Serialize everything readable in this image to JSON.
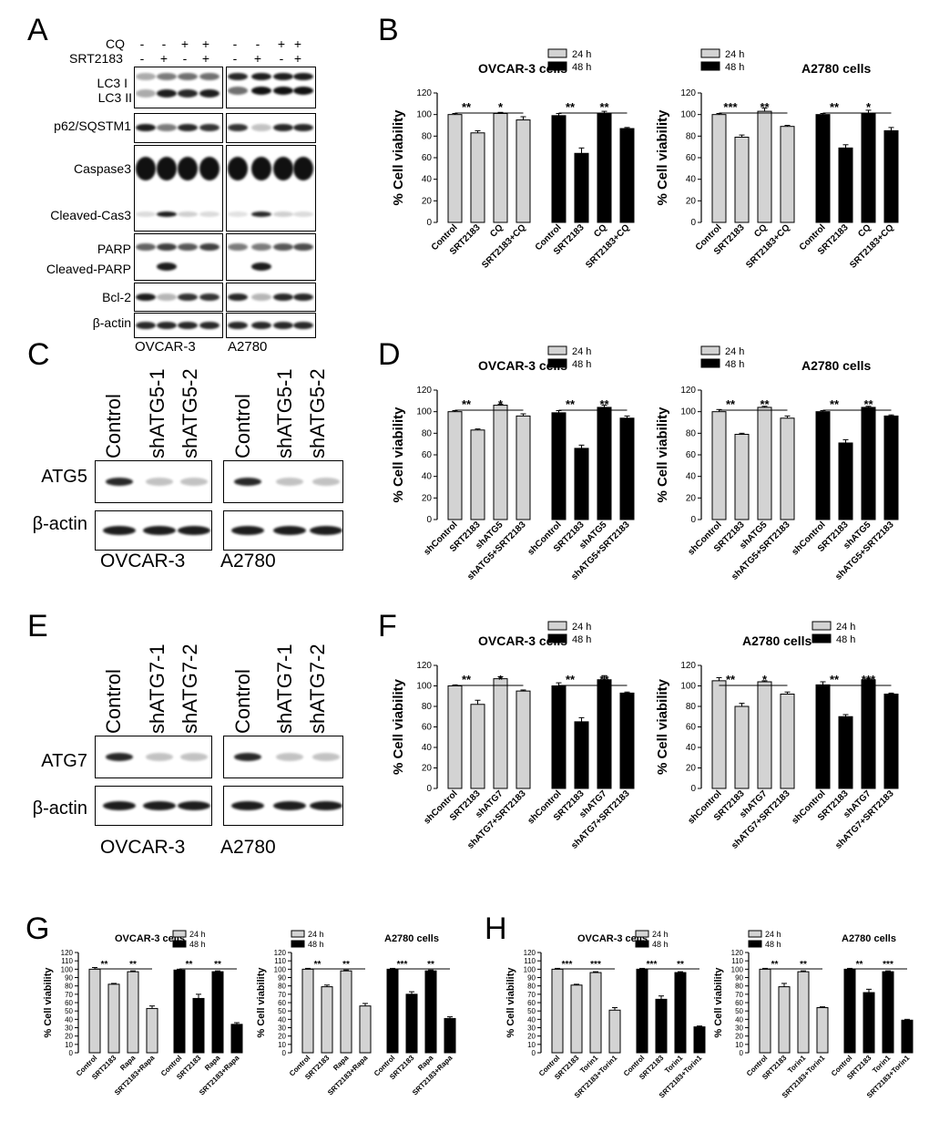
{
  "panels": {
    "A": "A",
    "B": "B",
    "C": "C",
    "D": "D",
    "E": "E",
    "F": "F",
    "G": "G",
    "H": "H"
  },
  "panelA": {
    "treatments": [
      {
        "name": "CQ",
        "signs": [
          "-",
          "-",
          "+",
          "+",
          "-",
          "-",
          "+",
          "+"
        ]
      },
      {
        "name": "SRT2183",
        "signs": [
          "-",
          "+",
          "-",
          "+",
          "-",
          "+",
          "-",
          "+"
        ]
      }
    ],
    "rows": [
      "LC3 I",
      "LC3 II",
      "p62/SQSTM1",
      "Caspase3",
      "Cleaved-Cas3",
      "PARP",
      "Cleaved-PARP",
      "Bcl-2",
      "β-actin"
    ],
    "cells": [
      "OVCAR-3",
      "A2780"
    ]
  },
  "panelC": {
    "lanes": [
      "Control",
      "shATG5-1",
      "shATG5-2",
      "Control",
      "shATG5-1",
      "shATG5-2"
    ],
    "rows": [
      "ATG5",
      "β-actin"
    ],
    "cells": [
      "OVCAR-3",
      "A2780"
    ]
  },
  "panelE": {
    "lanes": [
      "Control",
      "shATG7-1",
      "shATG7-2",
      "Control",
      "shATG7-1",
      "shATG7-2"
    ],
    "rows": [
      "ATG7",
      "β-actin"
    ],
    "cells": [
      "OVCAR-3",
      "A2780"
    ]
  },
  "chart_data": [
    {
      "id": "B1",
      "panel": "B",
      "type": "bar",
      "title": "OVCAR-3 cells",
      "ylabel": "% Cell viability",
      "ylim": [
        0,
        120
      ],
      "yticks": [
        0,
        20,
        40,
        60,
        80,
        100,
        120
      ],
      "categories": [
        "Control",
        "SRT2183",
        "CQ",
        "SRT2183+CQ"
      ],
      "series": [
        {
          "name": "24 h",
          "color": "#d3d3d3",
          "values": [
            100,
            83,
            101,
            95
          ],
          "errors": [
            1,
            2,
            1,
            3
          ]
        },
        {
          "name": "48 h",
          "color": "#000000",
          "values": [
            99,
            64,
            101,
            87
          ],
          "errors": [
            2,
            5,
            2,
            1
          ]
        }
      ],
      "sig": [
        "**",
        "*",
        "**",
        "**"
      ]
    },
    {
      "id": "B2",
      "panel": "B",
      "type": "bar",
      "title": "A2780 cells",
      "ylabel": "% Cell viability",
      "ylim": [
        0,
        120
      ],
      "yticks": [
        0,
        20,
        40,
        60,
        80,
        100,
        120
      ],
      "categories": [
        "Control",
        "SRT2183",
        "CQ",
        "SRT2183+CQ"
      ],
      "series": [
        {
          "name": "24 h",
          "color": "#d3d3d3",
          "values": [
            100,
            79,
            103,
            89
          ],
          "errors": [
            1,
            2,
            3,
            1
          ]
        },
        {
          "name": "48 h",
          "color": "#000000",
          "values": [
            100,
            69,
            101,
            85
          ],
          "errors": [
            1,
            3,
            3,
            3
          ]
        }
      ],
      "sig": [
        "***",
        "**",
        "**",
        "*"
      ]
    },
    {
      "id": "D1",
      "panel": "D",
      "type": "bar",
      "title": "OVCAR-3 cells",
      "ylabel": "% Cell viability",
      "ylim": [
        0,
        120
      ],
      "yticks": [
        0,
        20,
        40,
        60,
        80,
        100,
        120
      ],
      "categories": [
        "shControl",
        "SRT2183",
        "shATG5",
        "shATG5+SRT2183"
      ],
      "series": [
        {
          "name": "24 h",
          "color": "#d3d3d3",
          "values": [
            100,
            83,
            106,
            96
          ],
          "errors": [
            1,
            1,
            1,
            2
          ]
        },
        {
          "name": "48 h",
          "color": "#000000",
          "values": [
            99,
            66,
            104,
            94
          ],
          "errors": [
            2,
            3,
            2,
            2
          ]
        }
      ],
      "sig": [
        "**",
        "*",
        "**",
        "**"
      ]
    },
    {
      "id": "D2",
      "panel": "D",
      "type": "bar",
      "title": "A2780 cells",
      "ylabel": "% Cell viability",
      "ylim": [
        0,
        120
      ],
      "yticks": [
        0,
        20,
        40,
        60,
        80,
        100,
        120
      ],
      "categories": [
        "shControl",
        "SRT2183",
        "shATG5",
        "shATG5+SRT2183"
      ],
      "series": [
        {
          "name": "24 h",
          "color": "#d3d3d3",
          "values": [
            100,
            79,
            104,
            94
          ],
          "errors": [
            2,
            1,
            1,
            2
          ]
        },
        {
          "name": "48 h",
          "color": "#000000",
          "values": [
            100,
            71,
            104,
            96
          ],
          "errors": [
            1,
            3,
            1,
            1
          ]
        }
      ],
      "sig": [
        "**",
        "**",
        "**",
        "**"
      ]
    },
    {
      "id": "F1",
      "panel": "F",
      "type": "bar",
      "title": "OVCAR-3 cells",
      "ylabel": "% Cell viability",
      "ylim": [
        0,
        120
      ],
      "yticks": [
        0,
        20,
        40,
        60,
        80,
        100,
        120
      ],
      "categories": [
        "shControl",
        "SRT2183",
        "shATG7",
        "shATG7+SRT2183"
      ],
      "series": [
        {
          "name": "24 h",
          "color": "#d3d3d3",
          "values": [
            100,
            82,
            107,
            95
          ],
          "errors": [
            1,
            4,
            2,
            1
          ]
        },
        {
          "name": "48 h",
          "color": "#000000",
          "values": [
            100,
            65,
            106,
            93
          ],
          "errors": [
            3,
            4,
            4,
            1
          ]
        }
      ],
      "sig": [
        "**",
        "*",
        "**",
        "**"
      ]
    },
    {
      "id": "F2",
      "panel": "F",
      "type": "bar",
      "title": "A2780 cells",
      "ylabel": "% Cell viability",
      "ylim": [
        0,
        120
      ],
      "yticks": [
        0,
        20,
        40,
        60,
        80,
        100,
        120
      ],
      "categories": [
        "shControl",
        "SRT2183",
        "shATG7",
        "shATG7+SRT2183"
      ],
      "series": [
        {
          "name": "24 h",
          "color": "#d3d3d3",
          "values": [
            105,
            80,
            104,
            92
          ],
          "errors": [
            3,
            3,
            1,
            2
          ]
        },
        {
          "name": "48 h",
          "color": "#000000",
          "values": [
            101,
            70,
            106,
            92
          ],
          "errors": [
            3,
            2,
            1,
            1
          ]
        }
      ],
      "sig": [
        "**",
        "*",
        "**",
        "***"
      ]
    },
    {
      "id": "G1",
      "panel": "G",
      "type": "bar",
      "title": "OVCAR-3 cells",
      "ylabel": "% Cell viability",
      "ylim": [
        0,
        120
      ],
      "yticks": [
        0,
        10,
        20,
        30,
        40,
        50,
        60,
        70,
        80,
        90,
        100,
        110,
        120
      ],
      "categories": [
        "Control",
        "SRT2183",
        "Rapa",
        "SRT2183+Rapa"
      ],
      "series": [
        {
          "name": "24 h",
          "color": "#d3d3d3",
          "values": [
            100,
            82,
            97,
            53
          ],
          "errors": [
            2,
            1,
            1,
            3
          ]
        },
        {
          "name": "48 h",
          "color": "#000000",
          "values": [
            99,
            65,
            97,
            34
          ],
          "errors": [
            1,
            5,
            1,
            2
          ]
        }
      ],
      "sig": [
        "**",
        "**",
        "**",
        "**"
      ]
    },
    {
      "id": "G2",
      "panel": "G",
      "type": "bar",
      "title": "A2780 cells",
      "ylabel": "% Cell viability",
      "ylim": [
        0,
        120
      ],
      "yticks": [
        0,
        10,
        20,
        30,
        40,
        50,
        60,
        70,
        80,
        90,
        100,
        110,
        120
      ],
      "categories": [
        "Control",
        "SRT2183",
        "Rapa",
        "SRT2183+Rapa"
      ],
      "series": [
        {
          "name": "24 h",
          "color": "#d3d3d3",
          "values": [
            100,
            79,
            98,
            56
          ],
          "errors": [
            1,
            2,
            1,
            3
          ]
        },
        {
          "name": "48 h",
          "color": "#000000",
          "values": [
            100,
            70,
            98,
            41
          ],
          "errors": [
            1,
            3,
            1,
            2
          ]
        }
      ],
      "sig": [
        "**",
        "**",
        "***",
        "**"
      ]
    },
    {
      "id": "H1",
      "panel": "H",
      "type": "bar",
      "title": "OVCAR-3 cells",
      "ylabel": "% Cell viability",
      "ylim": [
        0,
        120
      ],
      "yticks": [
        0,
        10,
        20,
        30,
        40,
        50,
        60,
        70,
        80,
        90,
        100,
        110,
        120
      ],
      "categories": [
        "Control",
        "SRT2183",
        "Torin1",
        "SRT2183+Torin1"
      ],
      "series": [
        {
          "name": "24 h",
          "color": "#d3d3d3",
          "values": [
            100,
            81,
            96,
            51
          ],
          "errors": [
            1,
            1,
            1,
            3
          ]
        },
        {
          "name": "48 h",
          "color": "#000000",
          "values": [
            100,
            64,
            96,
            31
          ],
          "errors": [
            1,
            4,
            1,
            1
          ]
        }
      ],
      "sig": [
        "***",
        "***",
        "***",
        "**"
      ]
    },
    {
      "id": "H2",
      "panel": "H",
      "type": "bar",
      "title": "A2780 cells",
      "ylabel": "% Cell viability",
      "ylim": [
        0,
        120
      ],
      "yticks": [
        0,
        10,
        20,
        30,
        40,
        50,
        60,
        70,
        80,
        90,
        100,
        110,
        120
      ],
      "categories": [
        "Control",
        "SRT2183",
        "Torin1",
        "SRT2183+Torin1"
      ],
      "series": [
        {
          "name": "24 h",
          "color": "#d3d3d3",
          "values": [
            100,
            79,
            97,
            54
          ],
          "errors": [
            1,
            4,
            1,
            1
          ]
        },
        {
          "name": "48 h",
          "color": "#000000",
          "values": [
            100,
            72,
            97,
            39
          ],
          "errors": [
            1,
            4,
            1,
            1
          ]
        }
      ],
      "sig": [
        "**",
        "**",
        "**",
        "***"
      ]
    }
  ]
}
